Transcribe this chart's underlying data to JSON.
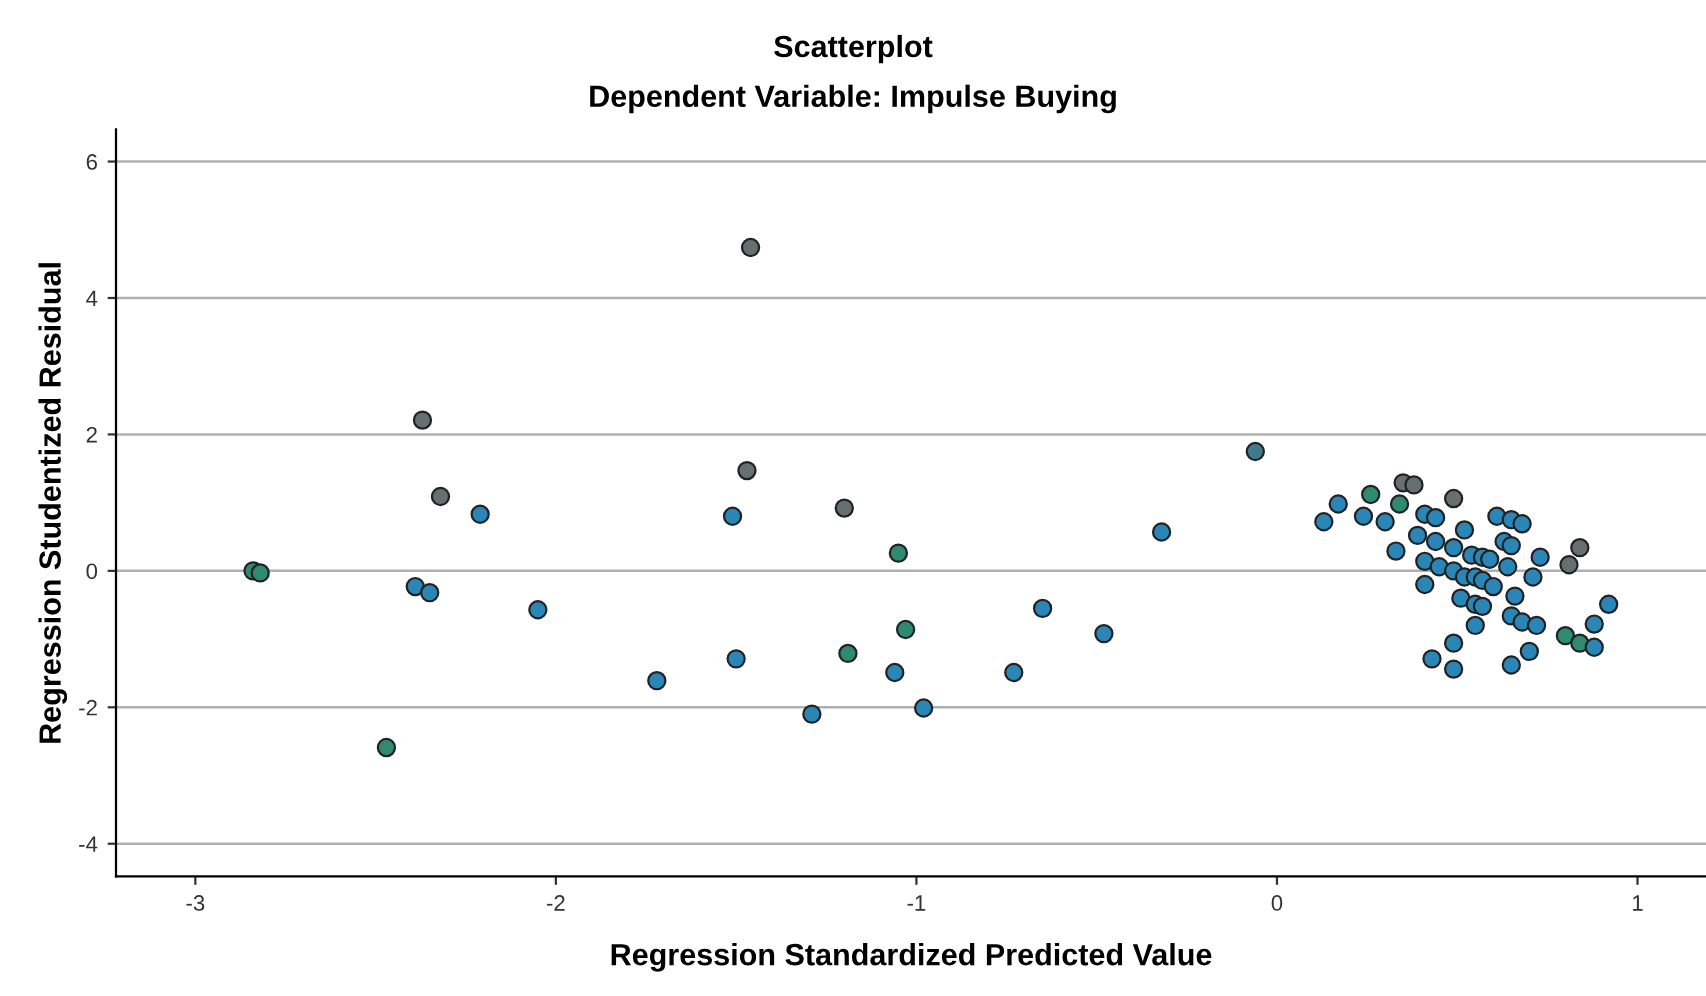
{
  "chart_data": {
    "type": "scatter",
    "title": "Scatterplot",
    "subtitle": "Dependent Variable: Impulse Buying",
    "xlabel": "Regression Standardized Predicted Value",
    "ylabel": "Regression Studentized Residual",
    "x": [
      -2.84,
      -2.82,
      -2.37,
      -2.32,
      -2.21,
      -2.39,
      -2.35,
      -2.05,
      -2.47,
      -1.46,
      -1.47,
      -1.51,
      -1.5,
      -1.72,
      -1.29,
      -1.2,
      -1.19,
      -1.05,
      -1.03,
      -1.06,
      -0.98,
      -0.73,
      -0.65,
      -0.48,
      -0.32,
      -0.06,
      0.13,
      0.17,
      0.24,
      0.26,
      0.3,
      0.34,
      0.35,
      0.38,
      0.49,
      0.41,
      0.44,
      0.33,
      0.39,
      0.44,
      0.49,
      0.52,
      0.41,
      0.45,
      0.49,
      0.52,
      0.55,
      0.57,
      0.6,
      0.41,
      0.54,
      0.57,
      0.59,
      0.64,
      0.63,
      0.65,
      0.61,
      0.65,
      0.68,
      0.73,
      0.71,
      0.81,
      0.84,
      0.51,
      0.55,
      0.57,
      0.66,
      0.55,
      0.65,
      0.68,
      0.72,
      0.92,
      0.88,
      0.8,
      0.84,
      0.88,
      0.7,
      0.65,
      0.49,
      0.43,
      0.49
    ],
    "values": [
      0.0,
      -0.03,
      2.21,
      1.09,
      0.83,
      -0.23,
      -0.32,
      -0.57,
      -2.59,
      4.74,
      1.47,
      0.8,
      -1.29,
      -1.61,
      -2.1,
      0.92,
      -1.21,
      0.26,
      -0.86,
      -1.49,
      -2.01,
      -1.49,
      -0.55,
      -0.92,
      0.57,
      1.75,
      0.72,
      0.98,
      0.8,
      1.12,
      0.72,
      0.98,
      1.29,
      1.26,
      1.06,
      0.83,
      0.78,
      0.29,
      0.52,
      0.43,
      0.34,
      0.6,
      0.14,
      0.06,
      0.0,
      -0.09,
      -0.09,
      -0.14,
      -0.23,
      -0.2,
      0.23,
      0.2,
      0.17,
      0.06,
      0.43,
      0.37,
      0.8,
      0.75,
      0.69,
      0.2,
      -0.09,
      0.09,
      0.34,
      -0.4,
      -0.49,
      -0.52,
      -0.37,
      -0.8,
      -0.66,
      -0.75,
      -0.8,
      -0.49,
      -0.78,
      -0.95,
      -1.06,
      -1.12,
      -1.18,
      -1.38,
      -1.06,
      -1.29,
      -1.44
    ],
    "colors": [
      "#2f8a72",
      "#2f8a72",
      "#66706f",
      "#66706f",
      "#2b86b8",
      "#2b86b8",
      "#2b86b8",
      "#2b86b8",
      "#2f8a72",
      "#66706f",
      "#66706f",
      "#2b86b8",
      "#2b86b8",
      "#2b86b8",
      "#2b86b8",
      "#66706f",
      "#2f8a72",
      "#2f8a72",
      "#2f8a72",
      "#2b86b8",
      "#2b86b8",
      "#2b86b8",
      "#2b86b8",
      "#2b86b8",
      "#2b86b8",
      "#3f7b8c",
      "#2b86b8",
      "#2b86b8",
      "#2b86b8",
      "#2f8a72",
      "#2b86b8",
      "#2f8a72",
      "#66706f",
      "#66706f",
      "#66706f",
      "#2b86b8",
      "#2b86b8",
      "#2b86b8",
      "#2b86b8",
      "#2b86b8",
      "#2b86b8",
      "#2b86b8",
      "#2b86b8",
      "#2b86b8",
      "#2b86b8",
      "#2b86b8",
      "#2b86b8",
      "#2b86b8",
      "#2b86b8",
      "#2b86b8",
      "#2b86b8",
      "#2b86b8",
      "#2b86b8",
      "#2b86b8",
      "#2b86b8",
      "#2b86b8",
      "#2b86b8",
      "#2b86b8",
      "#2b86b8",
      "#2b86b8",
      "#2b86b8",
      "#66706f",
      "#66706f",
      "#2b86b8",
      "#2b86b8",
      "#2b86b8",
      "#2b86b8",
      "#2b86b8",
      "#2b86b8",
      "#2b86b8",
      "#2b86b8",
      "#2b86b8",
      "#2b86b8",
      "#2f8a72",
      "#2f8a72",
      "#2b86b8",
      "#2b86b8",
      "#2b86b8",
      "#2b86b8",
      "#2b86b8",
      "#2b86b8"
    ],
    "xlim": [
      -3.22,
      1.19
    ],
    "ylim": [
      -4.48,
      6.47
    ],
    "xticks": [
      -3,
      -2,
      -1,
      0,
      1
    ],
    "yticks": [
      -4,
      -2,
      0,
      2,
      4,
      6
    ],
    "grid": "y",
    "marker": "circle"
  }
}
